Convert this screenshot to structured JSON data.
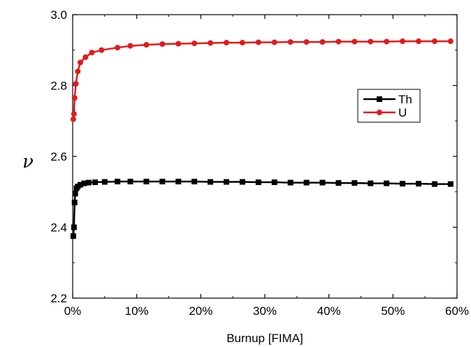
{
  "chart_data": {
    "type": "line",
    "title": "",
    "xlabel": "Burnup [FIMA]",
    "ylabel": "ν",
    "xlim": [
      0,
      60
    ],
    "ylim": [
      2.2,
      3.0
    ],
    "x_tick_labels": [
      "0%",
      "10%",
      "20%",
      "30%",
      "40%",
      "50%",
      "60%"
    ],
    "y_tick_labels": [
      "2.2",
      "2.4",
      "2.6",
      "2.8",
      "3.0"
    ],
    "grid": false,
    "legend_position": "right",
    "series": [
      {
        "name": "Th",
        "color": "#000000",
        "marker": "square",
        "x": [
          0.1,
          0.2,
          0.3,
          0.4,
          0.6,
          0.8,
          1.2,
          1.8,
          2.5,
          3.5,
          5,
          7,
          9,
          11.5,
          14,
          16.5,
          19,
          21.5,
          24,
          26.5,
          29,
          31.5,
          34,
          36.5,
          39,
          41.5,
          44,
          46.5,
          49,
          51.5,
          54,
          56.5,
          59
        ],
        "y": [
          2.375,
          2.4,
          2.47,
          2.495,
          2.51,
          2.515,
          2.52,
          2.524,
          2.526,
          2.527,
          2.528,
          2.529,
          2.529,
          2.529,
          2.529,
          2.529,
          2.529,
          2.528,
          2.528,
          2.528,
          2.527,
          2.527,
          2.526,
          2.526,
          2.526,
          2.525,
          2.525,
          2.524,
          2.524,
          2.523,
          2.523,
          2.522,
          2.522
        ]
      },
      {
        "name": "U",
        "color": "#e31a1c",
        "marker": "circle",
        "x": [
          0.1,
          0.2,
          0.3,
          0.5,
          0.8,
          1.2,
          2,
          3,
          4.5,
          7,
          9,
          11.5,
          14,
          16.5,
          19,
          21.5,
          24,
          26.5,
          29,
          31.5,
          34,
          36.5,
          39,
          41.5,
          44,
          46.5,
          49,
          51.5,
          54,
          56.5,
          59
        ],
        "y": [
          2.705,
          2.72,
          2.765,
          2.805,
          2.84,
          2.865,
          2.88,
          2.893,
          2.9,
          2.907,
          2.912,
          2.915,
          2.917,
          2.918,
          2.919,
          2.92,
          2.921,
          2.921,
          2.922,
          2.922,
          2.923,
          2.923,
          2.923,
          2.924,
          2.924,
          2.924,
          2.924,
          2.925,
          2.925,
          2.925,
          2.925
        ]
      }
    ]
  }
}
